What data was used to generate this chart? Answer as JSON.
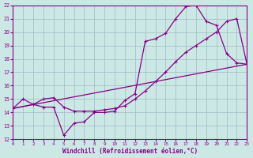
{
  "xlabel": "Windchill (Refroidissement éolien,°C)",
  "xlim": [
    0,
    23
  ],
  "ylim": [
    12,
    22
  ],
  "xticks": [
    0,
    1,
    2,
    3,
    4,
    5,
    6,
    7,
    8,
    9,
    10,
    11,
    12,
    13,
    14,
    15,
    16,
    17,
    18,
    19,
    20,
    21,
    22,
    23
  ],
  "yticks": [
    12,
    13,
    14,
    15,
    16,
    17,
    18,
    19,
    20,
    21,
    22
  ],
  "background_color": "#cce8e4",
  "grid_color": "#a0b8c8",
  "line_color": "#880088",
  "line1_x": [
    0,
    1,
    2,
    3,
    4,
    5,
    6,
    7,
    8,
    9,
    10,
    11,
    12,
    13,
    14,
    15,
    16,
    17,
    18,
    19,
    20,
    21,
    22,
    23
  ],
  "line1_y": [
    14.3,
    15.0,
    14.6,
    14.4,
    14.4,
    12.3,
    13.2,
    13.3,
    14.0,
    14.0,
    14.1,
    14.9,
    15.4,
    19.3,
    19.5,
    19.9,
    21.0,
    21.9,
    22.0,
    20.8,
    20.5,
    18.4,
    17.7,
    17.6
  ],
  "line2_x": [
    0,
    23
  ],
  "line2_y": [
    14.3,
    17.6
  ],
  "line3_x": [
    0,
    2,
    3,
    4,
    5,
    6,
    7,
    8,
    9,
    10,
    11,
    12,
    13,
    14,
    15,
    16,
    17,
    18,
    19,
    20,
    21,
    22,
    23
  ],
  "line3_y": [
    14.3,
    14.6,
    15.0,
    15.1,
    14.4,
    14.1,
    14.1,
    14.1,
    14.2,
    14.3,
    14.5,
    15.0,
    15.6,
    16.3,
    17.0,
    17.8,
    18.5,
    19.0,
    19.5,
    20.0,
    20.8,
    21.0,
    17.6
  ]
}
